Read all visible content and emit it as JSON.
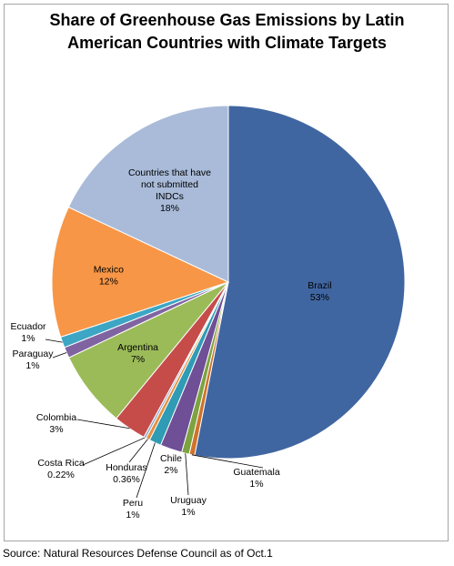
{
  "chart_data": {
    "type": "pie",
    "title": "Share of Greenhouse Gas Emissions by Latin American Countries with Climate Targets",
    "slices": [
      {
        "name": "Brazil",
        "value": 53,
        "label": "53%",
        "color": "#4066a1"
      },
      {
        "name": "Guatemala",
        "value": 0.5,
        "label": "1%",
        "color": "#d0722b"
      },
      {
        "name": "Uruguay",
        "value": 0.7,
        "label": "1%",
        "color": "#7ca33f"
      },
      {
        "name": "Chile",
        "value": 2,
        "label": "2%",
        "color": "#6f4f96"
      },
      {
        "name": "Peru",
        "value": 1.1,
        "label": "1%",
        "color": "#2f9bb4"
      },
      {
        "name": "Honduras",
        "value": 0.36,
        "label": "0.36%",
        "color": "#e8903d"
      },
      {
        "name": "Costa Rica",
        "value": 0.22,
        "label": "0.22%",
        "color": "#8fa8d3"
      },
      {
        "name": "Colombia",
        "value": 3,
        "label": "3%",
        "color": "#c64c4a"
      },
      {
        "name": "Argentina",
        "value": 7,
        "label": "7%",
        "color": "#9bbb59"
      },
      {
        "name": "Paraguay",
        "value": 1,
        "label": "1%",
        "color": "#8064a2"
      },
      {
        "name": "Ecuador",
        "value": 1,
        "label": "1%",
        "color": "#3ca6c4"
      },
      {
        "name": "Mexico",
        "value": 12,
        "label": "12%",
        "color": "#f79646"
      },
      {
        "name": "Countries that have not submitted INDCs",
        "value": 18,
        "label": "18%",
        "color": "#a9bbd9"
      }
    ]
  },
  "source": "Source: Natural Resources Defense Council as of Oct.1"
}
